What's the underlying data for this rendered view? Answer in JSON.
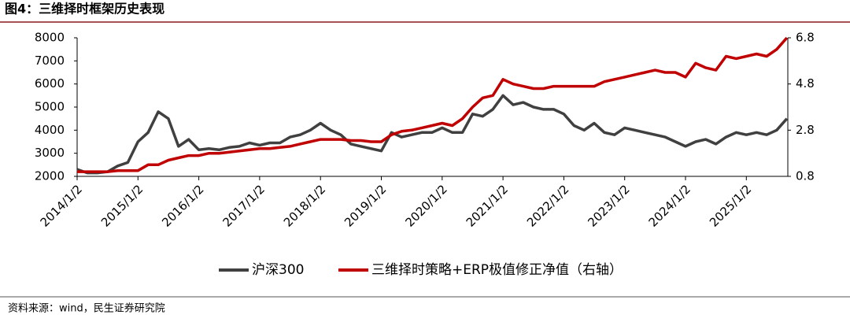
{
  "title": "图4：三维择时框架历史表现",
  "source": "资料来源：wind，民生证券研究院",
  "chart_data": {
    "type": "line",
    "categories": [
      "2014/1/2",
      null,
      null,
      null,
      null,
      null,
      "2015/1/2",
      null,
      null,
      null,
      null,
      null,
      "2016/1/2",
      null,
      null,
      null,
      null,
      null,
      "2017/1/2",
      null,
      null,
      null,
      null,
      null,
      "2018/1/2",
      null,
      null,
      null,
      null,
      null,
      "2019/1/2",
      null,
      null,
      null,
      null,
      null,
      "2020/1/2",
      null,
      null,
      null,
      null,
      null,
      "2021/1/2",
      null,
      null,
      null,
      null,
      null,
      "2022/1/2",
      null,
      null,
      null,
      null,
      null,
      "2023/1/2",
      null,
      null,
      null,
      null,
      null,
      "2024/1/2",
      null,
      null,
      null,
      null,
      null,
      "2025/1/2",
      null,
      null,
      null,
      null
    ],
    "series": [
      {
        "name": "沪深300",
        "color": "#404040",
        "values": [
          2300,
          2150,
          2150,
          2200,
          2450,
          2600,
          3500,
          3900,
          4800,
          4500,
          3300,
          3600,
          3150,
          3200,
          3150,
          3250,
          3300,
          3450,
          3350,
          3450,
          3450,
          3700,
          3800,
          4000,
          4300,
          4000,
          3800,
          3400,
          3300,
          3200,
          3100,
          3900,
          3700,
          3800,
          3900,
          3900,
          4100,
          3900,
          3900,
          4700,
          4600,
          4900,
          5500,
          5100,
          5200,
          5000,
          4900,
          4900,
          4700,
          4200,
          4000,
          4300,
          3900,
          3800,
          4100,
          4000,
          3900,
          3800,
          3700,
          3500,
          3300,
          3500,
          3600,
          3400,
          3700,
          3900,
          3800,
          3900,
          3800,
          4000,
          4500
        ]
      },
      {
        "name": "三维择时策略+ERP极值修正净值（右轴）",
        "color": "#c00000",
        "axis": "y2",
        "values": [
          1.0,
          1.0,
          1.0,
          1.0,
          1.05,
          1.05,
          1.05,
          1.3,
          1.3,
          1.5,
          1.6,
          1.7,
          1.7,
          1.8,
          1.8,
          1.85,
          1.9,
          1.95,
          2.0,
          2.0,
          2.05,
          2.1,
          2.2,
          2.3,
          2.4,
          2.4,
          2.4,
          2.35,
          2.35,
          2.3,
          2.3,
          2.6,
          2.75,
          2.8,
          2.9,
          3.0,
          3.1,
          3.0,
          3.3,
          3.8,
          4.2,
          4.3,
          5.0,
          4.8,
          4.7,
          4.6,
          4.6,
          4.7,
          4.7,
          4.7,
          4.7,
          4.7,
          4.9,
          5.0,
          5.1,
          5.2,
          5.3,
          5.4,
          5.3,
          5.3,
          5.1,
          5.7,
          5.5,
          5.4,
          6.0,
          5.9,
          6.0,
          6.1,
          6.0,
          6.3,
          6.8
        ]
      }
    ],
    "ylim": [
      2000,
      8000
    ],
    "yticks": [
      2000,
      3000,
      4000,
      5000,
      6000,
      7000,
      8000
    ],
    "y2lim": [
      0.8,
      6.8
    ],
    "y2ticks": [
      0.8,
      2.8,
      4.8,
      6.8
    ],
    "legend": "bottom"
  }
}
